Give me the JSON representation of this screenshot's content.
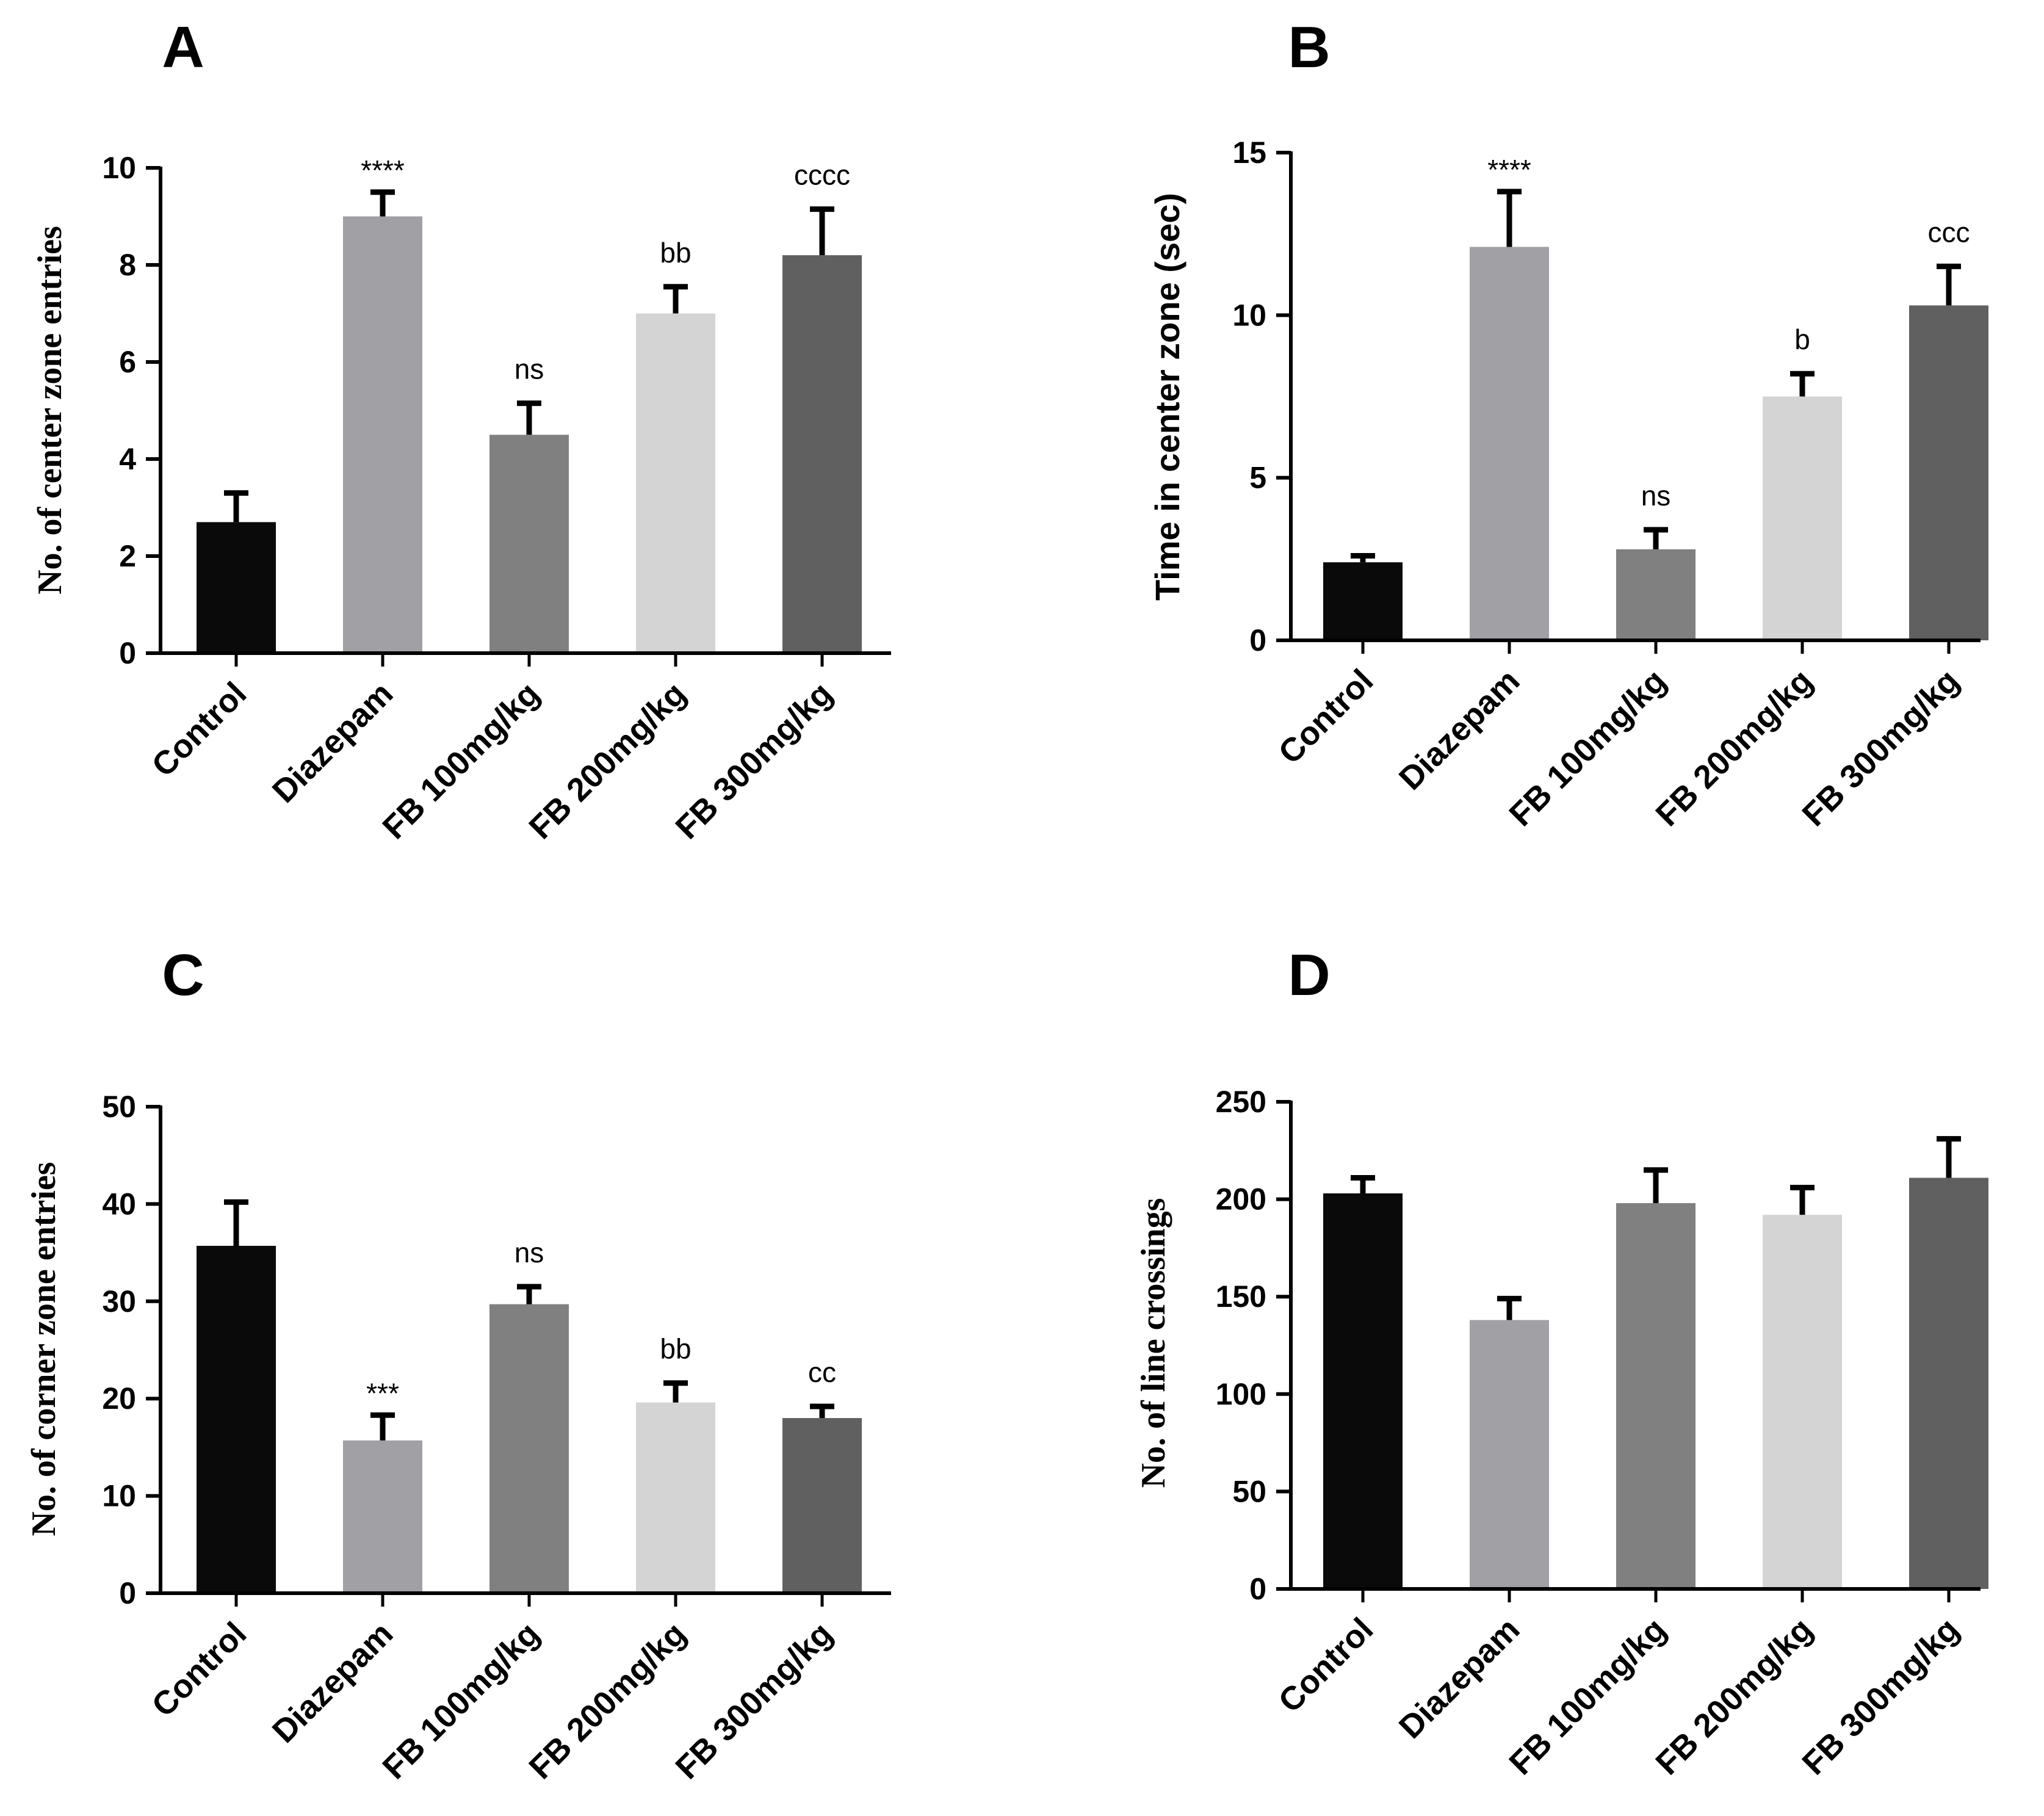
{
  "chart_data": [
    {
      "type": "bar",
      "panel": "A",
      "title": "",
      "xlabel": "",
      "ylabel": "No. of center zone entries",
      "ylim": [
        0,
        10
      ],
      "yticks": [
        0,
        2,
        4,
        6,
        8,
        10
      ],
      "categories": [
        "Control",
        "Diazepam",
        "FB 100mg/kg",
        "FB 200mg/kg",
        "FB 300mg/kg"
      ],
      "values": [
        2.7,
        9.0,
        4.5,
        7.0,
        8.2
      ],
      "errors": [
        0.6,
        0.5,
        0.65,
        0.55,
        0.95
      ],
      "significance": [
        "",
        "****",
        "ns",
        "bb",
        "cccc"
      ],
      "colors": [
        "#0a0a0a",
        "#a0a0a5",
        "#808080",
        "#d4d4d4",
        "#606060"
      ]
    },
    {
      "type": "bar",
      "panel": "B",
      "title": "",
      "xlabel": "",
      "ylabel": "Time in center zone (sec)",
      "ylim": [
        0,
        15
      ],
      "yticks": [
        0,
        5,
        10,
        15
      ],
      "categories": [
        "Control",
        "Diazepam",
        "FB 100mg/kg",
        "FB 200mg/kg",
        "FB 300mg/kg"
      ],
      "values": [
        2.4,
        12.1,
        2.8,
        7.5,
        10.3
      ],
      "errors": [
        0.2,
        1.7,
        0.6,
        0.7,
        1.2
      ],
      "significance": [
        "",
        "****",
        "ns",
        "b",
        "ccc"
      ],
      "colors": [
        "#0a0a0a",
        "#a0a0a5",
        "#808080",
        "#d4d4d4",
        "#606060"
      ]
    },
    {
      "type": "bar",
      "panel": "C",
      "title": "",
      "xlabel": "",
      "ylabel": "No. of corner zone entries",
      "ylim": [
        0,
        50
      ],
      "yticks": [
        0,
        10,
        20,
        30,
        40,
        50
      ],
      "categories": [
        "Control",
        "Diazepam",
        "FB 100mg/kg",
        "FB 200mg/kg",
        "FB 300mg/kg"
      ],
      "values": [
        35.7,
        15.7,
        29.7,
        19.6,
        18.0
      ],
      "errors": [
        4.5,
        2.6,
        1.8,
        2.0,
        1.2
      ],
      "significance": [
        "",
        "***",
        "ns",
        "bb",
        "cc"
      ],
      "colors": [
        "#0a0a0a",
        "#a0a0a5",
        "#808080",
        "#d4d4d4",
        "#606060"
      ]
    },
    {
      "type": "bar",
      "panel": "D",
      "title": "",
      "xlabel": "",
      "ylabel": "No. of line crossings",
      "ylim": [
        0,
        250
      ],
      "yticks": [
        0,
        50,
        100,
        150,
        200,
        250
      ],
      "categories": [
        "Control",
        "Diazepam",
        "FB 100mg/kg",
        "FB 200mg/kg",
        "FB 300mg/kg"
      ],
      "values": [
        203,
        138,
        198,
        192,
        211
      ],
      "errors": [
        8,
        11,
        17,
        14,
        20
      ],
      "significance": [
        "",
        "",
        "",
        "",
        ""
      ],
      "colors": [
        "#0a0a0a",
        "#a0a0a5",
        "#808080",
        "#d4d4d4",
        "#606060"
      ]
    }
  ]
}
